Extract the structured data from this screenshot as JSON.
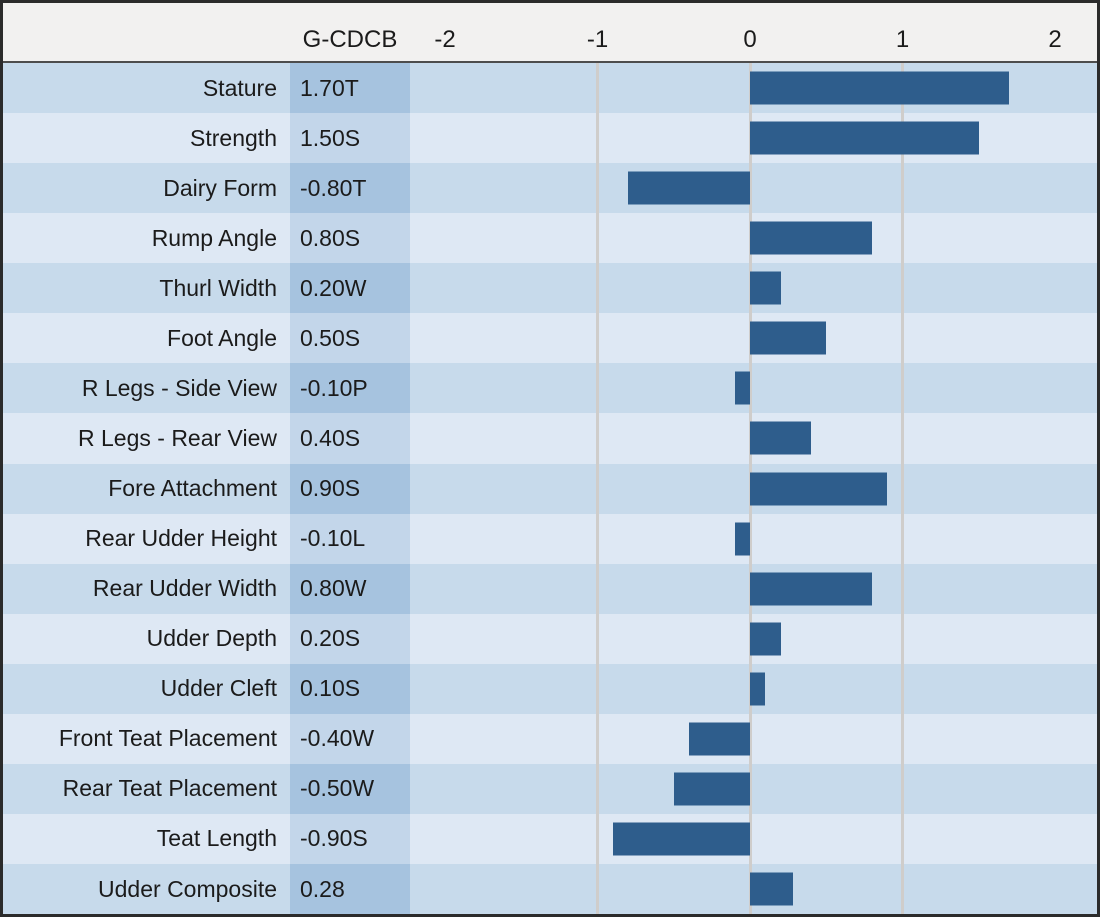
{
  "header": {
    "value_column_label": "G-CDCB"
  },
  "chart_data": {
    "type": "bar",
    "title": "",
    "xlabel": "",
    "ylabel": "",
    "orientation": "horizontal",
    "value_column_header": "G-CDCB",
    "categories": [
      "Stature",
      "Strength",
      "Dairy Form",
      "Rump Angle",
      "Thurl Width",
      "Foot Angle",
      "R Legs - Side View",
      "R Legs - Rear View",
      "Fore Attachment",
      "Rear Udder Height",
      "Rear Udder Width",
      "Udder Depth",
      "Udder Cleft",
      "Front Teat Placement",
      "Rear Teat Placement",
      "Teat Length",
      "Udder Composite"
    ],
    "values": [
      1.7,
      1.5,
      -0.8,
      0.8,
      0.2,
      0.5,
      -0.1,
      0.4,
      0.9,
      -0.1,
      0.8,
      0.2,
      0.1,
      -0.4,
      -0.5,
      -0.9,
      0.28
    ],
    "value_labels": [
      "1.70T",
      "1.50S",
      "-0.80T",
      "0.80S",
      "0.20W",
      "0.50S",
      "-0.10P",
      "0.40S",
      "0.90S",
      "-0.10L",
      "0.80W",
      "0.20S",
      "0.10S",
      "-0.40W",
      "-0.50W",
      "-0.90S",
      "0.28"
    ],
    "x_ticks": [
      -2,
      -1,
      0,
      1,
      2
    ],
    "gridlines_at": [
      -1,
      0,
      1
    ],
    "xlim": [
      -2.25,
      2.25
    ],
    "grid": true,
    "legend": "none"
  },
  "colors": {
    "bar": "#2E5D8C",
    "row_dark": "#C7DAEB",
    "row_light": "#DEE8F4",
    "value_dark": "#A6C3DF",
    "value_light": "#C3D6EA",
    "header_bg": "#F2F1F0",
    "gridline": "#CFCDCB",
    "border": "#2B2B2B",
    "text": "#1B1B1B"
  }
}
